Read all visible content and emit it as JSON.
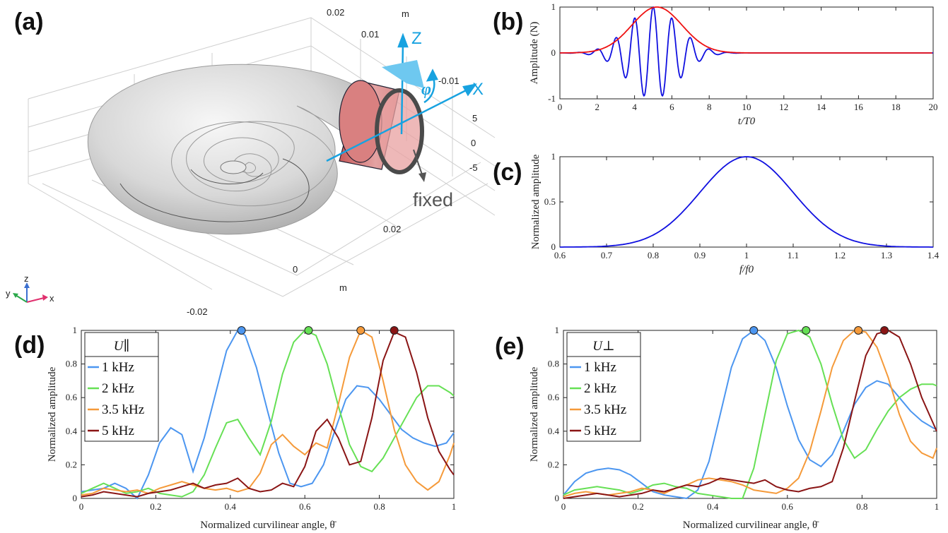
{
  "panel_a": {
    "label": "(a)",
    "scale_labels": [
      "0.02",
      "0.01",
      "m",
      "-0.01",
      "5",
      "0",
      "-5",
      "0.02",
      "0",
      "m",
      "-0.02"
    ],
    "axis_z": "Z",
    "axis_x": "X",
    "phi": "φ",
    "fixed": "fixed",
    "triad": {
      "z": "z",
      "y": "y",
      "x": "x"
    }
  },
  "chart_data": [
    {
      "id": "b",
      "label": "(b)",
      "type": "line",
      "ylabel": "Amplitude (N)",
      "xlabel": "t/T0",
      "xlim": [
        0,
        20
      ],
      "ylim": [
        -1,
        1
      ],
      "xticks": [
        0,
        2,
        4,
        6,
        8,
        10,
        12,
        14,
        16,
        18,
        20
      ],
      "yticks": [
        -1,
        0,
        1
      ],
      "series": [
        {
          "color": "#1010e0",
          "kind": "burst",
          "center": 5,
          "sigma": 1.9,
          "period": 1.0,
          "end": 10.2
        },
        {
          "color": "#ee1111",
          "kind": "envelope",
          "center": 5.2,
          "sigma": 1.9,
          "end": 10.2
        }
      ]
    },
    {
      "id": "c",
      "label": "(c)",
      "type": "line",
      "ylabel": "Normalized amplitude",
      "xlabel": "f/f0",
      "xlim": [
        0.6,
        1.4
      ],
      "ylim": [
        0,
        1
      ],
      "xticks": [
        0.6,
        0.7,
        0.8,
        0.9,
        1.0,
        1.1,
        1.2,
        1.3,
        1.4
      ],
      "yticks": [
        0,
        0.5,
        1
      ],
      "series": [
        {
          "color": "#1010e0",
          "kind": "gauss",
          "center": 1.0,
          "sigma": 0.1
        }
      ]
    },
    {
      "id": "d",
      "label": "(d)",
      "type": "line",
      "ylabel": "Normalized amplitude",
      "xlabel": "Normalized curvilinear angle, θ̄",
      "legend_title": "U∥",
      "xlim": [
        0,
        1
      ],
      "ylim": [
        0,
        1
      ],
      "xticks": [
        0,
        0.2,
        0.4,
        0.6,
        0.8,
        1
      ],
      "yticks": [
        0,
        0.2,
        0.4,
        0.6,
        0.8,
        1
      ],
      "series": [
        {
          "name": "1 kHz",
          "color": "#4c96f0",
          "peak": [
            0.43,
            1.0
          ],
          "x": [
            0,
            0.03,
            0.06,
            0.09,
            0.12,
            0.15,
            0.18,
            0.21,
            0.24,
            0.27,
            0.3,
            0.33,
            0.36,
            0.39,
            0.42,
            0.44,
            0.47,
            0.5,
            0.53,
            0.56,
            0.59,
            0.62,
            0.65,
            0.68,
            0.71,
            0.74,
            0.77,
            0.8,
            0.83,
            0.86,
            0.89,
            0.92,
            0.95,
            0.98,
            1.0
          ],
          "y": [
            0.04,
            0.05,
            0.06,
            0.09,
            0.06,
            0.0,
            0.14,
            0.33,
            0.42,
            0.38,
            0.16,
            0.36,
            0.62,
            0.88,
            1.0,
            0.97,
            0.78,
            0.52,
            0.27,
            0.09,
            0.07,
            0.09,
            0.2,
            0.4,
            0.59,
            0.67,
            0.66,
            0.59,
            0.5,
            0.41,
            0.36,
            0.33,
            0.31,
            0.33,
            0.39
          ]
        },
        {
          "name": "2 kHz",
          "color": "#66e055",
          "peak": [
            0.61,
            1.0
          ],
          "x": [
            0,
            0.03,
            0.06,
            0.09,
            0.12,
            0.15,
            0.18,
            0.21,
            0.24,
            0.27,
            0.3,
            0.33,
            0.36,
            0.39,
            0.42,
            0.45,
            0.48,
            0.51,
            0.54,
            0.57,
            0.6,
            0.63,
            0.66,
            0.69,
            0.72,
            0.75,
            0.78,
            0.81,
            0.84,
            0.87,
            0.9,
            0.93,
            0.96,
            0.99,
            1.0
          ],
          "y": [
            0.03,
            0.06,
            0.09,
            0.06,
            0.03,
            0.04,
            0.06,
            0.03,
            0.02,
            0.01,
            0.04,
            0.14,
            0.3,
            0.45,
            0.47,
            0.36,
            0.26,
            0.46,
            0.74,
            0.93,
            1.0,
            0.97,
            0.8,
            0.55,
            0.32,
            0.19,
            0.16,
            0.24,
            0.36,
            0.48,
            0.6,
            0.67,
            0.67,
            0.63,
            0.61
          ]
        },
        {
          "name": "3.5 kHz",
          "color": "#f59a3a",
          "peak": [
            0.75,
            1.0
          ],
          "x": [
            0,
            0.03,
            0.06,
            0.09,
            0.12,
            0.15,
            0.18,
            0.21,
            0.24,
            0.27,
            0.3,
            0.33,
            0.36,
            0.39,
            0.42,
            0.45,
            0.48,
            0.51,
            0.54,
            0.57,
            0.6,
            0.63,
            0.66,
            0.69,
            0.72,
            0.75,
            0.78,
            0.81,
            0.84,
            0.87,
            0.9,
            0.93,
            0.96,
            0.99,
            1.0
          ],
          "y": [
            0.02,
            0.03,
            0.06,
            0.05,
            0.04,
            0.05,
            0.03,
            0.06,
            0.08,
            0.1,
            0.08,
            0.06,
            0.05,
            0.06,
            0.04,
            0.06,
            0.15,
            0.32,
            0.38,
            0.31,
            0.26,
            0.33,
            0.3,
            0.56,
            0.84,
            1.0,
            0.96,
            0.7,
            0.41,
            0.2,
            0.1,
            0.05,
            0.1,
            0.26,
            0.33
          ]
        },
        {
          "name": "5 kHz",
          "color": "#8a1515",
          "peak": [
            0.84,
            1.0
          ],
          "x": [
            0,
            0.03,
            0.06,
            0.09,
            0.12,
            0.15,
            0.18,
            0.21,
            0.24,
            0.27,
            0.3,
            0.33,
            0.36,
            0.39,
            0.42,
            0.45,
            0.48,
            0.51,
            0.54,
            0.57,
            0.6,
            0.63,
            0.66,
            0.69,
            0.72,
            0.75,
            0.78,
            0.81,
            0.84,
            0.87,
            0.9,
            0.93,
            0.96,
            0.99,
            1.0
          ],
          "y": [
            0.01,
            0.02,
            0.04,
            0.03,
            0.02,
            0.01,
            0.03,
            0.04,
            0.05,
            0.07,
            0.09,
            0.06,
            0.08,
            0.09,
            0.12,
            0.06,
            0.04,
            0.05,
            0.09,
            0.07,
            0.19,
            0.4,
            0.47,
            0.36,
            0.2,
            0.22,
            0.48,
            0.82,
            0.99,
            0.96,
            0.75,
            0.48,
            0.28,
            0.17,
            0.14
          ]
        }
      ]
    },
    {
      "id": "e",
      "label": "(e)",
      "type": "line",
      "ylabel": "Normalized amplitude",
      "xlabel": "Normalized curvilinear angle, θ̄",
      "legend_title": "U⊥",
      "xlim": [
        0,
        1
      ],
      "ylim": [
        0,
        1
      ],
      "xticks": [
        0,
        0.2,
        0.4,
        0.6,
        0.8,
        1
      ],
      "yticks": [
        0,
        0.2,
        0.4,
        0.6,
        0.8,
        1
      ],
      "series": [
        {
          "name": "1 kHz",
          "color": "#4c96f0",
          "peak": [
            0.51,
            1.0
          ],
          "x": [
            0,
            0.03,
            0.06,
            0.09,
            0.12,
            0.15,
            0.18,
            0.21,
            0.24,
            0.27,
            0.3,
            0.33,
            0.36,
            0.39,
            0.42,
            0.45,
            0.48,
            0.51,
            0.54,
            0.57,
            0.6,
            0.63,
            0.66,
            0.69,
            0.72,
            0.75,
            0.78,
            0.81,
            0.84,
            0.87,
            0.9,
            0.93,
            0.96,
            0.99,
            1.0
          ],
          "y": [
            0.02,
            0.1,
            0.15,
            0.17,
            0.18,
            0.17,
            0.14,
            0.09,
            0.04,
            0.02,
            0.01,
            0.0,
            0.05,
            0.22,
            0.5,
            0.78,
            0.95,
            1.0,
            0.94,
            0.78,
            0.55,
            0.35,
            0.23,
            0.19,
            0.26,
            0.4,
            0.56,
            0.66,
            0.7,
            0.68,
            0.6,
            0.52,
            0.46,
            0.42,
            0.41
          ]
        },
        {
          "name": "2 kHz",
          "color": "#66e055",
          "peak": [
            0.65,
            1.0
          ],
          "x": [
            0,
            0.03,
            0.06,
            0.09,
            0.12,
            0.15,
            0.18,
            0.21,
            0.24,
            0.27,
            0.3,
            0.33,
            0.36,
            0.39,
            0.42,
            0.45,
            0.48,
            0.51,
            0.54,
            0.57,
            0.6,
            0.63,
            0.66,
            0.69,
            0.72,
            0.75,
            0.78,
            0.81,
            0.84,
            0.87,
            0.9,
            0.93,
            0.96,
            0.99,
            1.0
          ],
          "y": [
            0.02,
            0.05,
            0.06,
            0.07,
            0.06,
            0.05,
            0.03,
            0.05,
            0.08,
            0.09,
            0.07,
            0.06,
            0.03,
            0.02,
            0.01,
            0.0,
            0.0,
            0.18,
            0.5,
            0.82,
            0.98,
            1.0,
            0.96,
            0.8,
            0.56,
            0.35,
            0.24,
            0.29,
            0.41,
            0.52,
            0.6,
            0.65,
            0.68,
            0.68,
            0.67
          ]
        },
        {
          "name": "3.5 kHz",
          "color": "#f59a3a",
          "peak": [
            0.79,
            1.0
          ],
          "x": [
            0,
            0.03,
            0.06,
            0.09,
            0.12,
            0.15,
            0.18,
            0.21,
            0.24,
            0.27,
            0.3,
            0.33,
            0.36,
            0.39,
            0.42,
            0.45,
            0.48,
            0.51,
            0.54,
            0.57,
            0.6,
            0.63,
            0.66,
            0.69,
            0.72,
            0.75,
            0.78,
            0.81,
            0.84,
            0.87,
            0.9,
            0.93,
            0.96,
            0.99,
            1.0
          ],
          "y": [
            0.01,
            0.03,
            0.04,
            0.03,
            0.02,
            0.03,
            0.04,
            0.06,
            0.05,
            0.03,
            0.06,
            0.08,
            0.11,
            0.12,
            0.11,
            0.1,
            0.08,
            0.05,
            0.04,
            0.03,
            0.06,
            0.12,
            0.28,
            0.52,
            0.78,
            0.94,
            1.0,
            0.99,
            0.9,
            0.72,
            0.5,
            0.34,
            0.27,
            0.24,
            0.3
          ]
        },
        {
          "name": "5 kHz",
          "color": "#8a1515",
          "peak": [
            0.86,
            1.0
          ],
          "x": [
            0,
            0.03,
            0.06,
            0.09,
            0.12,
            0.15,
            0.18,
            0.21,
            0.24,
            0.27,
            0.3,
            0.33,
            0.36,
            0.39,
            0.42,
            0.45,
            0.48,
            0.51,
            0.54,
            0.57,
            0.6,
            0.63,
            0.66,
            0.69,
            0.72,
            0.75,
            0.78,
            0.81,
            0.84,
            0.87,
            0.9,
            0.93,
            0.96,
            0.99,
            1.0
          ],
          "y": [
            0.0,
            0.01,
            0.02,
            0.03,
            0.02,
            0.01,
            0.02,
            0.03,
            0.05,
            0.04,
            0.06,
            0.08,
            0.07,
            0.09,
            0.12,
            0.11,
            0.1,
            0.09,
            0.11,
            0.07,
            0.05,
            0.04,
            0.06,
            0.07,
            0.1,
            0.3,
            0.58,
            0.85,
            0.98,
            1.0,
            0.96,
            0.8,
            0.6,
            0.45,
            0.4
          ]
        }
      ]
    }
  ]
}
